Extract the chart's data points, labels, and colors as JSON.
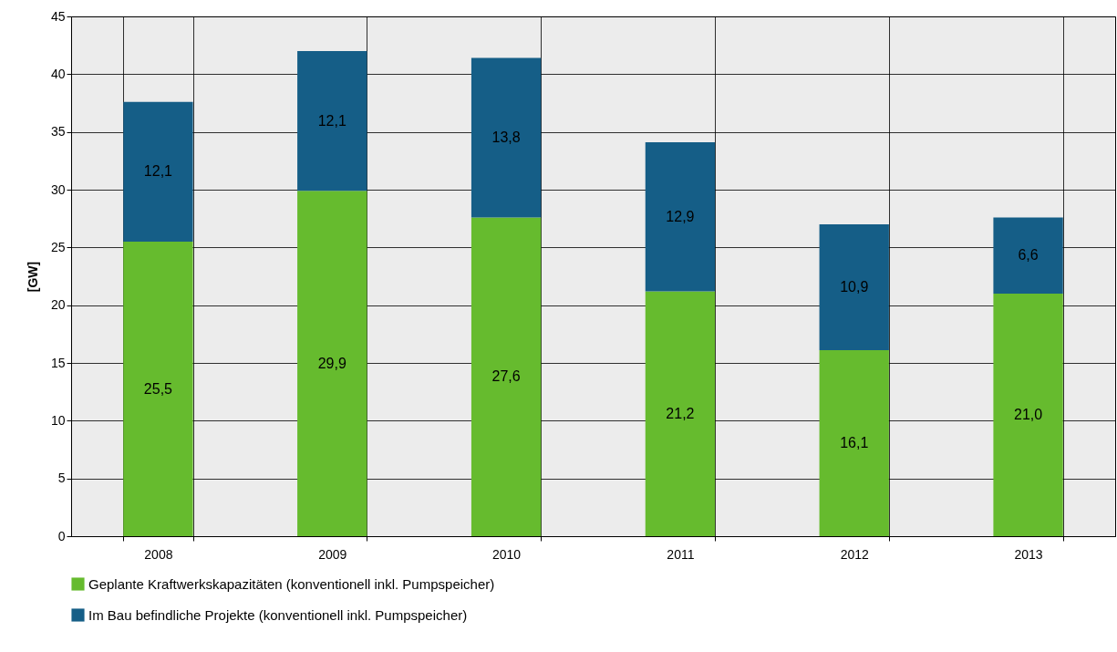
{
  "chart_data": {
    "type": "bar",
    "stacked": true,
    "ylabel": "[GW]",
    "categories": [
      "2008",
      "2009",
      "2010",
      "2011",
      "2012",
      "2013"
    ],
    "series": [
      {
        "name": "Geplante Kraftwerkskapazitäten  (konventionell inkl. Pumpspeicher)",
        "color": "#66bb2e",
        "values": [
          25.5,
          29.9,
          27.6,
          21.2,
          16.1,
          21.0
        ],
        "value_labels": [
          "25,5",
          "29,9",
          "27,6",
          "21,2",
          "16,1",
          "21,0"
        ]
      },
      {
        "name": "Im Bau befindliche Projekte (konventionell inkl. Pumpspeicher)",
        "color": "#155e87",
        "values": [
          12.1,
          12.1,
          13.8,
          12.9,
          10.9,
          6.6
        ],
        "value_labels": [
          "12,1",
          "12,1",
          "13,8",
          "12,9",
          "10,9",
          "6,6"
        ]
      }
    ],
    "ylim": [
      0,
      45
    ],
    "yticks": [
      0,
      5,
      10,
      15,
      20,
      25,
      30,
      35,
      40,
      45
    ],
    "grid": true,
    "legend": "bottom"
  }
}
